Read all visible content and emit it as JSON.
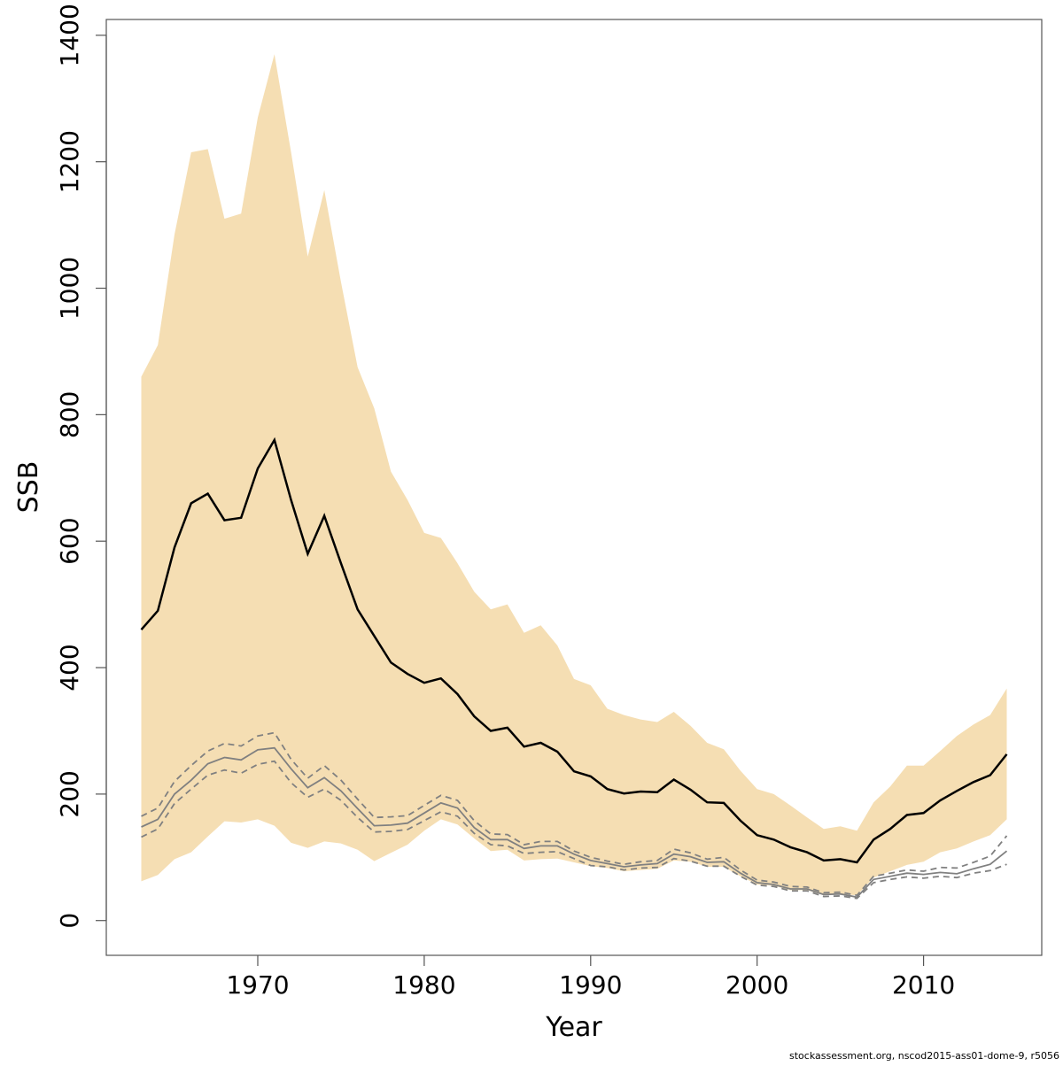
{
  "chart_data": {
    "type": "line",
    "xlabel": "Year",
    "ylabel": "SSB",
    "footer": "stockassessment.org, nscod2015-ass01-dome-9, r5056",
    "x": [
      1963,
      1964,
      1965,
      1966,
      1967,
      1968,
      1969,
      1970,
      1971,
      1972,
      1973,
      1974,
      1975,
      1976,
      1977,
      1978,
      1979,
      1980,
      1981,
      1982,
      1983,
      1984,
      1985,
      1986,
      1987,
      1988,
      1989,
      1990,
      1991,
      1992,
      1993,
      1994,
      1995,
      1996,
      1997,
      1998,
      1999,
      2000,
      2001,
      2002,
      2003,
      2004,
      2005,
      2006,
      2007,
      2008,
      2009,
      2010,
      2011,
      2012,
      2013,
      2014,
      2015
    ],
    "band": {
      "color": "#f5deb3",
      "upper": [
        860,
        910,
        1085,
        1215,
        1220,
        1110,
        1118,
        1270,
        1370,
        1215,
        1050,
        1155,
        1010,
        875,
        810,
        710,
        665,
        613,
        605,
        565,
        520,
        492,
        500,
        455,
        467,
        435,
        382,
        372,
        335,
        325,
        318,
        314,
        330,
        308,
        281,
        271,
        237,
        208,
        200,
        182,
        163,
        145,
        149,
        142,
        187,
        212,
        245,
        245,
        268,
        292,
        310,
        325,
        367
      ],
      "lower": [
        62,
        72,
        97,
        108,
        133,
        157,
        155,
        160,
        150,
        123,
        115,
        125,
        122,
        112,
        94,
        107,
        120,
        142,
        160,
        152,
        130,
        110,
        112,
        95,
        97,
        98,
        92,
        86,
        83,
        78,
        80,
        82,
        95,
        93,
        85,
        85,
        70,
        57,
        55,
        48,
        48,
        40,
        42,
        40,
        68,
        78,
        88,
        93,
        108,
        114,
        125,
        135,
        160
      ]
    },
    "series": [
      {
        "color": "#000000",
        "dash": false,
        "width": 2.5,
        "values": [
          460,
          490,
          590,
          660,
          675,
          633,
          637,
          715,
          760,
          665,
          580,
          640,
          565,
          492,
          450,
          408,
          390,
          376,
          383,
          358,
          323,
          300,
          305,
          275,
          281,
          267,
          236,
          228,
          208,
          201,
          204,
          203,
          223,
          207,
          187,
          186,
          158,
          135,
          128,
          116,
          108,
          95,
          97,
          92,
          128,
          145,
          167,
          170,
          190,
          205,
          219,
          230,
          263
        ]
      },
      {
        "color": "#808080",
        "dash": false,
        "width": 1.8,
        "values": [
          148,
          160,
          200,
          222,
          248,
          258,
          254,
          270,
          273,
          240,
          210,
          226,
          205,
          177,
          150,
          151,
          154,
          170,
          186,
          178,
          147,
          128,
          128,
          114,
          118,
          118,
          105,
          95,
          90,
          85,
          88,
          90,
          105,
          101,
          92,
          93,
          75,
          60,
          57,
          50,
          50,
          41,
          42,
          37,
          65,
          70,
          75,
          73,
          76,
          74,
          82,
          89,
          110
        ]
      },
      {
        "color": "#808080",
        "dash": true,
        "width": 1.8,
        "values": [
          165,
          178,
          220,
          245,
          268,
          280,
          276,
          292,
          297,
          255,
          225,
          245,
          222,
          192,
          163,
          164,
          166,
          182,
          198,
          190,
          158,
          137,
          136,
          120,
          125,
          125,
          110,
          100,
          94,
          89,
          93,
          95,
          113,
          107,
          97,
          100,
          80,
          64,
          61,
          54,
          53,
          44,
          45,
          40,
          70,
          75,
          80,
          78,
          84,
          83,
          92,
          102,
          134
        ]
      },
      {
        "color": "#808080",
        "dash": true,
        "width": 1.8,
        "values": [
          132,
          145,
          185,
          208,
          230,
          238,
          233,
          247,
          252,
          218,
          195,
          208,
          190,
          163,
          140,
          141,
          144,
          158,
          172,
          165,
          138,
          120,
          118,
          106,
          108,
          109,
          98,
          87,
          85,
          80,
          83,
          84,
          98,
          94,
          86,
          86,
          70,
          56,
          54,
          47,
          47,
          38,
          39,
          35,
          60,
          65,
          69,
          67,
          70,
          68,
          75,
          79,
          89
        ]
      }
    ],
    "xlim": [
      1960.9,
      2017.1
    ],
    "ylim": [
      -55,
      1425
    ],
    "xticks": [
      1970,
      1980,
      1990,
      2000,
      2010
    ],
    "yticks": [
      0,
      200,
      400,
      600,
      800,
      1000,
      1200,
      1400
    ]
  }
}
